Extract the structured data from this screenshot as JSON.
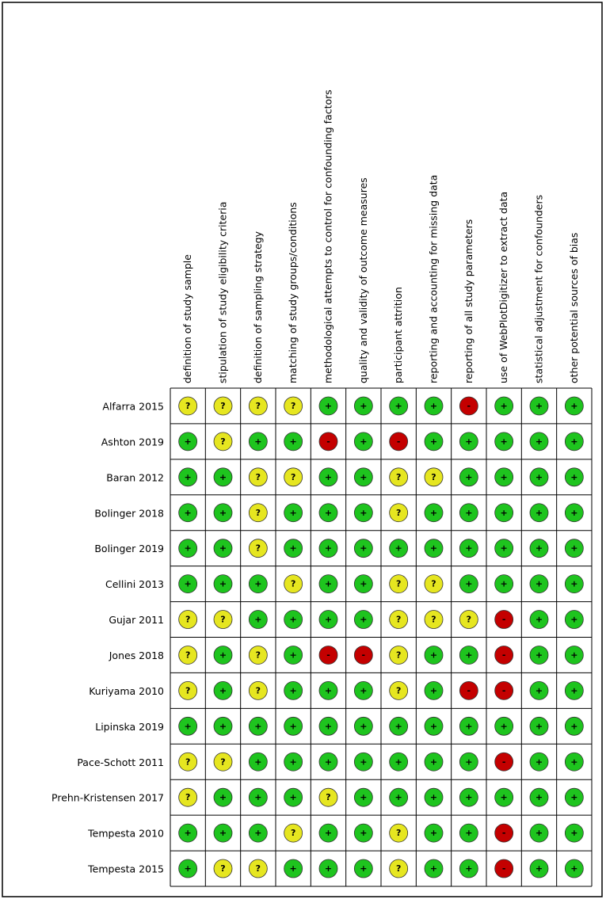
{
  "columns": [
    "definition of study sample",
    "stipulation of study eligibility criteria",
    "definition of sampling strategy",
    "matching of study groups/conditions",
    "methodological attempts to control for confounding factors",
    "quality and validity of outcome measures",
    "participant attrition",
    "reporting and accounting for missing data",
    "reporting of all study parameters",
    "use of WebPlotDigitizer to extract data",
    "statistical adjustment for confounders",
    "other potential sources of bias"
  ],
  "symbol_colors": {
    "+": "#1ec41e",
    "?": "#e6e620",
    "-": "#c40000"
  },
  "rows": [
    {
      "label": "Alfarra 2015",
      "cells": [
        "?",
        "?",
        "?",
        "?",
        "+",
        "+",
        "+",
        "+",
        "-",
        "+",
        "+",
        "+"
      ]
    },
    {
      "label": "Ashton 2019",
      "cells": [
        "+",
        "?",
        "+",
        "+",
        "-",
        "+",
        "-",
        "+",
        "+",
        "+",
        "+",
        "+"
      ]
    },
    {
      "label": "Baran 2012",
      "cells": [
        "+",
        "+",
        "?",
        "?",
        "+",
        "+",
        "?",
        "?",
        "+",
        "+",
        "+",
        "+"
      ]
    },
    {
      "label": "Bolinger 2018",
      "cells": [
        "+",
        "+",
        "?",
        "+",
        "+",
        "+",
        "?",
        "+",
        "+",
        "+",
        "+",
        "+"
      ]
    },
    {
      "label": "Bolinger 2019",
      "cells": [
        "+",
        "+",
        "?",
        "+",
        "+",
        "+",
        "+",
        "+",
        "+",
        "+",
        "+",
        "+"
      ]
    },
    {
      "label": "Cellini 2013",
      "cells": [
        "+",
        "+",
        "+",
        "?",
        "+",
        "+",
        "?",
        "?",
        "+",
        "+",
        "+",
        "+"
      ]
    },
    {
      "label": "Gujar 2011",
      "cells": [
        "?",
        "?",
        "+",
        "+",
        "+",
        "+",
        "?",
        "?",
        "?",
        "-",
        "+",
        "+"
      ]
    },
    {
      "label": "Jones 2018",
      "cells": [
        "?",
        "+",
        "?",
        "+",
        "-",
        "-",
        "?",
        "+",
        "+",
        "-",
        "+",
        "+"
      ]
    },
    {
      "label": "Kuriyama 2010",
      "cells": [
        "?",
        "+",
        "?",
        "+",
        "+",
        "+",
        "?",
        "+",
        "-",
        "-",
        "+",
        "+"
      ]
    },
    {
      "label": "Lipinska 2019",
      "cells": [
        "+",
        "+",
        "+",
        "+",
        "+",
        "+",
        "+",
        "+",
        "+",
        "+",
        "+",
        "+"
      ]
    },
    {
      "label": "Pace-Schott 2011",
      "cells": [
        "?",
        "?",
        "+",
        "+",
        "+",
        "+",
        "+",
        "+",
        "+",
        "-",
        "+",
        "+"
      ]
    },
    {
      "label": "Prehn-Kristensen 2017",
      "cells": [
        "?",
        "+",
        "+",
        "+",
        "?",
        "+",
        "+",
        "+",
        "+",
        "+",
        "+",
        "+"
      ]
    },
    {
      "label": "Tempesta 2010",
      "cells": [
        "+",
        "+",
        "+",
        "?",
        "+",
        "+",
        "?",
        "+",
        "+",
        "-",
        "+",
        "+"
      ]
    },
    {
      "label": "Tempesta 2015",
      "cells": [
        "+",
        "?",
        "?",
        "+",
        "+",
        "+",
        "?",
        "+",
        "+",
        "-",
        "+",
        "+"
      ]
    }
  ]
}
